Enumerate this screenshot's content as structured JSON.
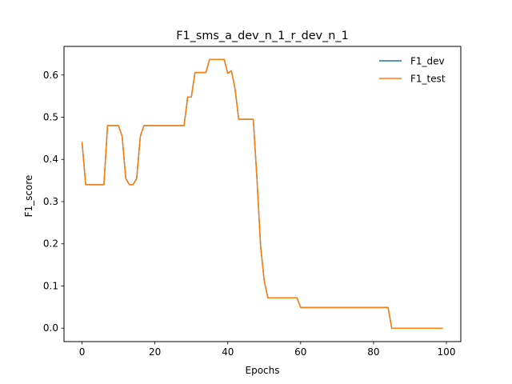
{
  "chart_data": {
    "type": "line",
    "title": "F1_sms_a_dev_n_1_r_dev_n_1",
    "xlabel": "Epochs",
    "ylabel": "F1_score",
    "xlim": [
      -4.95,
      103.95
    ],
    "ylim": [
      -0.0318,
      0.6678
    ],
    "xticks": [
      0,
      20,
      40,
      60,
      80,
      100
    ],
    "yticks": [
      0.0,
      0.1,
      0.2,
      0.3,
      0.4,
      0.5,
      0.6
    ],
    "xtick_labels": [
      "0",
      "20",
      "40",
      "60",
      "80",
      "100"
    ],
    "ytick_labels": [
      "0.0",
      "0.1",
      "0.2",
      "0.3",
      "0.4",
      "0.5",
      "0.6"
    ],
    "grid": false,
    "legend_position": "top-right",
    "x": [
      0,
      1,
      2,
      3,
      4,
      5,
      6,
      7,
      8,
      9,
      10,
      11,
      12,
      13,
      14,
      15,
      16,
      17,
      18,
      19,
      20,
      21,
      22,
      23,
      24,
      25,
      26,
      27,
      28,
      29,
      30,
      31,
      32,
      33,
      34,
      35,
      36,
      37,
      38,
      39,
      40,
      41,
      42,
      43,
      44,
      45,
      46,
      47,
      48,
      49,
      50,
      51,
      52,
      53,
      54,
      55,
      56,
      57,
      58,
      59,
      60,
      61,
      62,
      63,
      64,
      65,
      66,
      67,
      68,
      69,
      70,
      71,
      72,
      73,
      74,
      75,
      76,
      77,
      78,
      79,
      80,
      81,
      82,
      83,
      84,
      85,
      86,
      87,
      88,
      89,
      90,
      91,
      92,
      93,
      94,
      95,
      96,
      97,
      98,
      99
    ],
    "series": [
      {
        "name": "F1_dev",
        "color": "#1f77b4",
        "values": [
          0.441,
          0.34,
          0.34,
          0.34,
          0.34,
          0.34,
          0.34,
          0.48,
          0.48,
          0.48,
          0.48,
          0.455,
          0.355,
          0.34,
          0.34,
          0.355,
          0.455,
          0.48,
          0.48,
          0.48,
          0.48,
          0.48,
          0.48,
          0.48,
          0.48,
          0.48,
          0.48,
          0.48,
          0.48,
          0.548,
          0.548,
          0.606,
          0.606,
          0.606,
          0.606,
          0.637,
          0.637,
          0.637,
          0.637,
          0.637,
          0.604,
          0.61,
          0.567,
          0.495,
          0.495,
          0.495,
          0.495,
          0.495,
          0.355,
          0.195,
          0.112,
          0.072,
          0.072,
          0.072,
          0.072,
          0.072,
          0.072,
          0.072,
          0.072,
          0.072,
          0.049,
          0.049,
          0.049,
          0.049,
          0.049,
          0.049,
          0.049,
          0.049,
          0.049,
          0.049,
          0.049,
          0.049,
          0.049,
          0.049,
          0.049,
          0.049,
          0.049,
          0.049,
          0.049,
          0.049,
          0.049,
          0.049,
          0.049,
          0.049,
          0.049,
          0.0,
          0.0,
          0.0,
          0.0,
          0.0,
          0.0,
          0.0,
          0.0,
          0.0,
          0.0,
          0.0,
          0.0,
          0.0,
          0.0,
          0.0
        ]
      },
      {
        "name": "F1_test",
        "color": "#ff7f0e",
        "values": [
          0.441,
          0.34,
          0.34,
          0.34,
          0.34,
          0.34,
          0.34,
          0.48,
          0.48,
          0.48,
          0.48,
          0.455,
          0.355,
          0.34,
          0.34,
          0.355,
          0.455,
          0.48,
          0.48,
          0.48,
          0.48,
          0.48,
          0.48,
          0.48,
          0.48,
          0.48,
          0.48,
          0.48,
          0.48,
          0.548,
          0.548,
          0.606,
          0.606,
          0.606,
          0.606,
          0.637,
          0.637,
          0.637,
          0.637,
          0.637,
          0.604,
          0.61,
          0.567,
          0.495,
          0.495,
          0.495,
          0.495,
          0.495,
          0.355,
          0.195,
          0.112,
          0.072,
          0.072,
          0.072,
          0.072,
          0.072,
          0.072,
          0.072,
          0.072,
          0.072,
          0.049,
          0.049,
          0.049,
          0.049,
          0.049,
          0.049,
          0.049,
          0.049,
          0.049,
          0.049,
          0.049,
          0.049,
          0.049,
          0.049,
          0.049,
          0.049,
          0.049,
          0.049,
          0.049,
          0.049,
          0.049,
          0.049,
          0.049,
          0.049,
          0.049,
          0.0,
          0.0,
          0.0,
          0.0,
          0.0,
          0.0,
          0.0,
          0.0,
          0.0,
          0.0,
          0.0,
          0.0,
          0.0,
          0.0,
          0.0
        ]
      }
    ]
  }
}
